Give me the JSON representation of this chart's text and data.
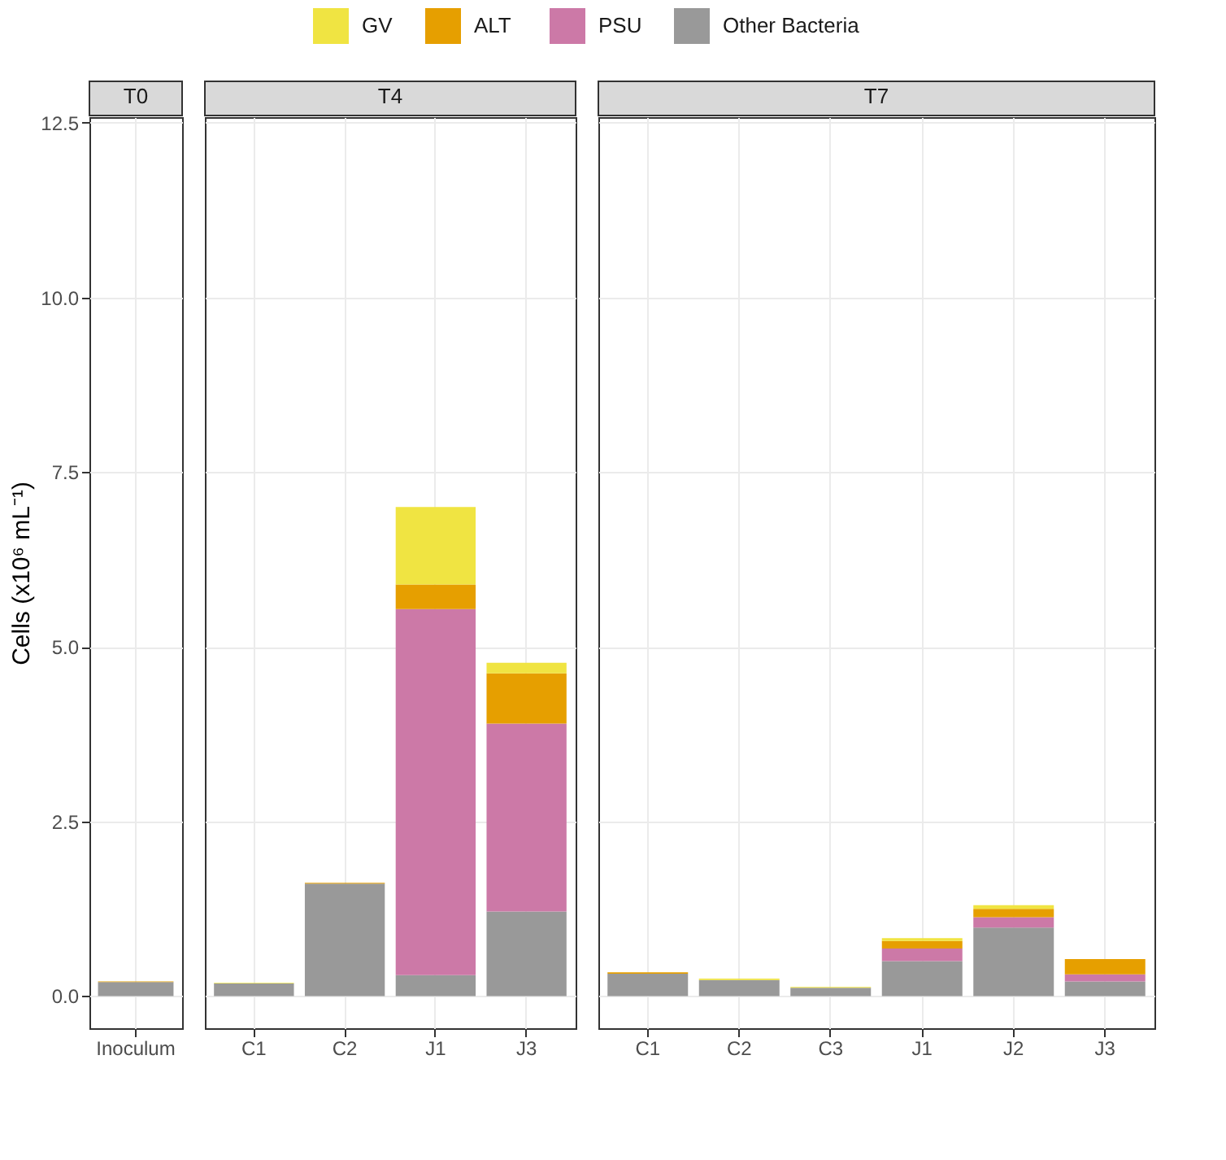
{
  "chart_data": [
    {
      "type": "bar",
      "title": "T0",
      "ylabel": "Cells (x10⁶ mL⁻¹)",
      "stacked": true,
      "categories": [
        "Inoculum"
      ],
      "ylim": [
        -0.46,
        12.58
      ],
      "yticks": [
        {
          "value": 0,
          "label": "0.0"
        },
        2.5,
        {
          "value": 5,
          "label": "5.0"
        },
        7.5,
        {
          "value": 10,
          "label": "10.0"
        },
        12.5
      ],
      "grid": true,
      "legend": "top",
      "series": [
        {
          "name": "Other Bacteria",
          "color": "#999999",
          "values": [
            0.2
          ]
        },
        {
          "name": "PSU",
          "color": "#cc79a7",
          "values": [
            0
          ]
        },
        {
          "name": "ALT",
          "color": "#e69f00",
          "values": [
            0.01
          ]
        },
        {
          "name": "GV",
          "color": "#f0e442",
          "values": [
            0
          ]
        }
      ]
    },
    {
      "type": "bar",
      "title": "T4",
      "stacked": true,
      "categories": [
        "C1",
        "C2",
        "J1",
        "J3"
      ],
      "ylim": [
        -0.46,
        12.58
      ],
      "yticks": [
        0,
        2.5,
        5,
        7.5,
        10,
        12.5
      ],
      "grid": true,
      "tick_labels": "x",
      "series": [
        {
          "color": "#999999",
          "values": [
            0.18,
            1.61,
            0.3,
            1.21
          ]
        },
        {
          "color": "#cc79a7",
          "values": [
            0,
            0,
            5.24,
            2.69
          ]
        },
        {
          "color": "#e69f00",
          "values": [
            0,
            0.01,
            0.35,
            0.72
          ]
        },
        {
          "color": "#f0e442",
          "values": [
            0.01,
            0,
            1.11,
            0.15
          ]
        }
      ]
    },
    {
      "type": "bar",
      "title": "T7",
      "stacked": true,
      "categories": [
        "C1",
        "C2",
        "C3",
        "J1",
        "J2",
        "J3"
      ],
      "ylim": [
        -0.46,
        12.58
      ],
      "yticks": [
        0,
        2.5,
        5,
        7.5,
        10,
        12.5
      ],
      "grid": true,
      "tick_labels": "x",
      "series": [
        {
          "color": "#999999",
          "values": [
            0.32,
            0.23,
            0.12,
            0.5,
            0.98,
            0.21
          ]
        },
        {
          "color": "#cc79a7",
          "values": [
            0,
            0,
            0,
            0.18,
            0.15,
            0.1
          ]
        },
        {
          "color": "#e69f00",
          "values": [
            0.02,
            0,
            0,
            0.11,
            0.12,
            0.22
          ]
        },
        {
          "color": "#f0e442",
          "values": [
            0,
            0.02,
            0.01,
            0.04,
            0.05,
            0
          ]
        }
      ]
    }
  ]
}
